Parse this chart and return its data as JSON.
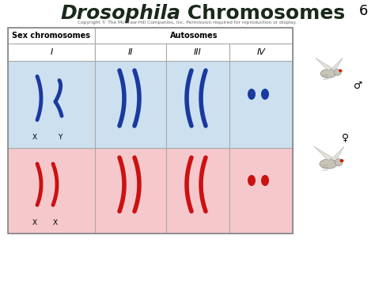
{
  "title_italic": "Drosophila",
  "title_normal": " Chromosomes",
  "title_fontsize": 18,
  "slide_number": "6",
  "copyright": "Copyright © The McGraw-Hill Companies, Inc. Permission required for reproduction or display.",
  "background_color": "#ffffff",
  "table_bg_blue": "#cce0f0",
  "table_bg_pink": "#f5c8cc",
  "table_bg_white": "#ffffff",
  "table_border": "#aaaaaa",
  "blue_color": "#1a3a9f",
  "red_color": "#cc1111",
  "male_symbol": "♂",
  "female_symbol": "♀"
}
